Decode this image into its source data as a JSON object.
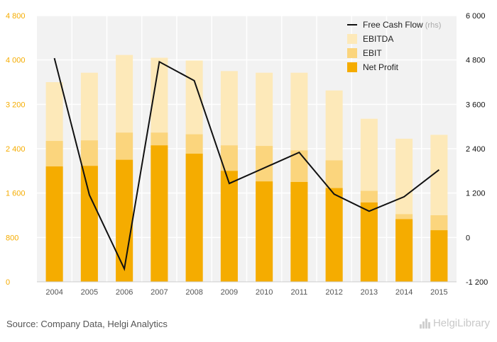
{
  "chart_data": {
    "type": "bar+line",
    "title": "",
    "categories": [
      "2004",
      "2005",
      "2006",
      "2007",
      "2008",
      "2009",
      "2010",
      "2011",
      "2012",
      "2013",
      "2014",
      "2015"
    ],
    "series": [
      {
        "name": "EBITDA",
        "kind": "bar-stack-total",
        "color": "#fde9b9",
        "values": [
          3600,
          3770,
          4090,
          4040,
          3990,
          3800,
          3770,
          3770,
          3450,
          2940,
          2580,
          2650
        ]
      },
      {
        "name": "EBIT",
        "kind": "bar-stack-total",
        "color": "#fbd57d",
        "values": [
          2540,
          2550,
          2690,
          2690,
          2660,
          2460,
          2450,
          2370,
          2190,
          1640,
          1220,
          1200
        ]
      },
      {
        "name": "Net Profit",
        "kind": "bar",
        "color": "#f5ac00",
        "values": [
          2080,
          2090,
          2200,
          2460,
          2310,
          2000,
          1810,
          1800,
          1690,
          1430,
          1130,
          930
        ]
      },
      {
        "name": "Free Cash Flow",
        "kind": "line",
        "axis": "right",
        "color": "#111111",
        "values": [
          4850,
          1150,
          -850,
          4750,
          4240,
          1460,
          1880,
          2300,
          1170,
          710,
          1100,
          1830
        ]
      }
    ],
    "y_left": {
      "ylim": [
        0,
        4800
      ],
      "ticks": [
        0,
        800,
        1600,
        2400,
        3200,
        4000,
        4800
      ],
      "tick_labels": [
        "0",
        "800",
        "1 600",
        "2 400",
        "3 200",
        "4 000",
        "4 800"
      ],
      "color": "#f5ac00"
    },
    "y_right": {
      "ylim": [
        -1200,
        6000
      ],
      "ticks": [
        -1200,
        0,
        1200,
        2400,
        3600,
        4800,
        6000
      ],
      "tick_labels": [
        "-1 200",
        "0",
        "1 200",
        "2 400",
        "3 600",
        "4 800",
        "6 000"
      ],
      "color": "#111111"
    },
    "legend": {
      "placement": "top-right",
      "items": [
        {
          "label": "Free Cash Flow",
          "suffix": "(rhs)",
          "symbol": "line",
          "color": "#111111"
        },
        {
          "label": "EBITDA",
          "suffix": "",
          "symbol": "square",
          "color": "#fde9b9"
        },
        {
          "label": "EBIT",
          "suffix": "",
          "symbol": "square",
          "color": "#fbd57d"
        },
        {
          "label": "Net Profit",
          "suffix": "",
          "symbol": "square",
          "color": "#f5ac00"
        }
      ]
    },
    "grid": true,
    "plot_background": "#f2f2f2"
  },
  "footer": {
    "source": "Source: Company Data, Helgi Analytics",
    "brand": "HelgiLibrary"
  }
}
